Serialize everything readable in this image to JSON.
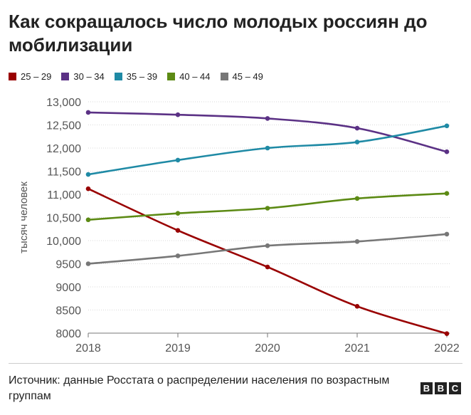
{
  "title": "Как сокращалось число молодых россиян до мобилизации",
  "source": "Источник: данные Росстата о распределении населения по возрастным группам",
  "logo": [
    "B",
    "B",
    "C"
  ],
  "chart_data": {
    "type": "line",
    "ylabel": "тысяч человек",
    "xlabel": "",
    "x": [
      "2018",
      "2019",
      "2020",
      "2021",
      "2022"
    ],
    "ylim": [
      8000,
      13000
    ],
    "yticks": [
      8000,
      8500,
      9000,
      9500,
      10000,
      10500,
      11000,
      11500,
      12000,
      12500,
      13000
    ],
    "ytick_labels": [
      "8000",
      "8500",
      "9000",
      "9500",
      "10,000",
      "10,500",
      "11,000",
      "11,500",
      "12,000",
      "12,500",
      "13,000"
    ],
    "grid": true,
    "legend_position": "top-left",
    "series": [
      {
        "name": "25 – 29",
        "color": "#990000",
        "values": [
          11120,
          10220,
          9430,
          8580,
          7990
        ]
      },
      {
        "name": "30 – 34",
        "color": "#5b3185",
        "values": [
          12770,
          12720,
          12640,
          12430,
          11920
        ]
      },
      {
        "name": "35 – 39",
        "color": "#1f8aa5",
        "values": [
          11430,
          11740,
          12000,
          12130,
          12480
        ]
      },
      {
        "name": "40 – 44",
        "color": "#5c8a14",
        "values": [
          10450,
          10590,
          10700,
          10910,
          11020
        ]
      },
      {
        "name": "45 – 49",
        "color": "#777777",
        "values": [
          9500,
          9670,
          9890,
          9980,
          10140
        ]
      }
    ]
  }
}
